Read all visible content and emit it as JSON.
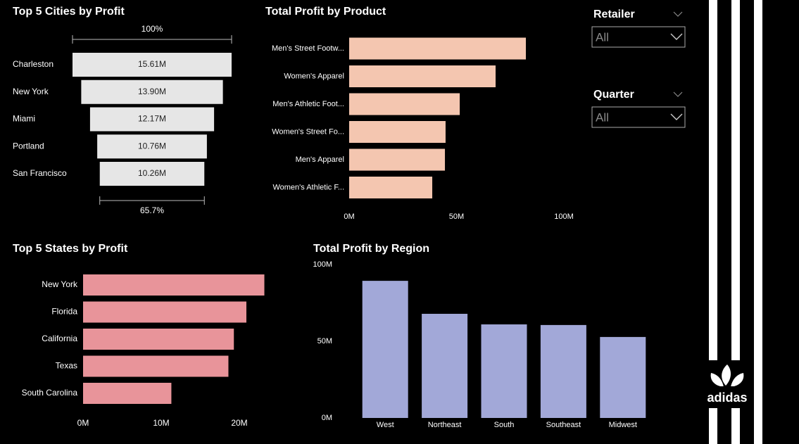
{
  "chart_data": [
    {
      "type": "funnel",
      "title": "Top 5 Cities by Profit",
      "categories": [
        "Charleston",
        "New York",
        "Miami",
        "Portland",
        "San Francisco"
      ],
      "values": [
        15610000,
        13900000,
        12170000,
        10760000,
        10260000
      ],
      "value_labels": [
        "15.61M",
        "13.90M",
        "12.17M",
        "10.76M",
        "10.26M"
      ],
      "top_label": "100%",
      "bottom_label": "65.7%",
      "color": "#e6e6e6"
    },
    {
      "type": "hbar",
      "title": "Total Profit by Product",
      "categories": [
        "Men's Street Footw...",
        "Women's Apparel",
        "Men's Athletic Foot...",
        "Women's Street Fo...",
        "Men's Apparel",
        "Women's Athletic F..."
      ],
      "values": [
        82300000,
        68200000,
        51500000,
        44900000,
        44600000,
        38700000
      ],
      "xlim": [
        0,
        100000000
      ],
      "xticks": [
        {
          "value": 0,
          "label": "0M"
        },
        {
          "value": 50000000,
          "label": "50M"
        },
        {
          "value": 100000000,
          "label": "100M"
        }
      ],
      "color": "#f4c6b0"
    },
    {
      "type": "hbar",
      "title": "Top 5 States by Profit",
      "categories": [
        "New York",
        "Florida",
        "California",
        "Texas",
        "South Carolina"
      ],
      "values": [
        23200000,
        20900000,
        19300000,
        18600000,
        11300000
      ],
      "xlim": [
        0,
        20000000
      ],
      "xticks": [
        {
          "value": 0,
          "label": "0M"
        },
        {
          "value": 10000000,
          "label": "10M"
        },
        {
          "value": 20000000,
          "label": "20M"
        }
      ],
      "color": "#e8949a"
    },
    {
      "type": "bar",
      "title": "Total Profit by Region",
      "categories": [
        "West",
        "Northeast",
        "South",
        "Southeast",
        "Midwest"
      ],
      "values": [
        89400000,
        67900000,
        61000000,
        60600000,
        52800000
      ],
      "ylim": [
        0,
        100000000
      ],
      "yticks": [
        {
          "value": 0,
          "label": "0M"
        },
        {
          "value": 50000000,
          "label": "50M"
        },
        {
          "value": 100000000,
          "label": "100M"
        }
      ],
      "color": "#a2a8d8"
    }
  ],
  "slicers": [
    {
      "title": "Retailer",
      "value": "All"
    },
    {
      "title": "Quarter",
      "value": "All"
    }
  ],
  "logo": "adidas"
}
